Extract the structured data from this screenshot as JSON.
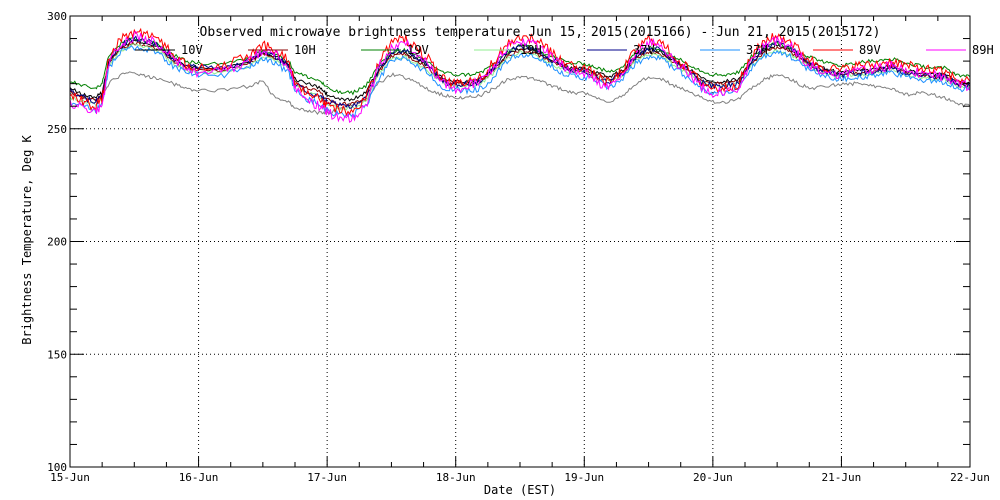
{
  "chart_data": {
    "type": "line",
    "title": "Observed microwave brightness temperature Jun 15, 2015(2015166) - Jun 21, 2015(2015172)",
    "xlabel": "Date (EST)",
    "ylabel": "Brightness Temperature, Deg K",
    "xlim": [
      0,
      7
    ],
    "ylim": [
      100,
      300
    ],
    "grid": true,
    "legend_position": "top",
    "x_ticks": [
      {
        "value": 0,
        "label": "15-Jun"
      },
      {
        "value": 1,
        "label": "16-Jun"
      },
      {
        "value": 2,
        "label": "17-Jun"
      },
      {
        "value": 3,
        "label": "18-Jun"
      },
      {
        "value": 4,
        "label": "19-Jun"
      },
      {
        "value": 5,
        "label": "20-Jun"
      },
      {
        "value": 6,
        "label": "21-Jun"
      },
      {
        "value": 7,
        "label": "22-Jun"
      }
    ],
    "y_ticks": [
      {
        "value": 100,
        "label": "100"
      },
      {
        "value": 150,
        "label": "150"
      },
      {
        "value": 200,
        "label": "200"
      },
      {
        "value": 250,
        "label": "250"
      },
      {
        "value": 300,
        "label": "300"
      }
    ],
    "x": [
      0,
      0.1,
      0.2,
      0.25,
      0.3,
      0.4,
      0.5,
      0.6,
      0.7,
      0.8,
      0.9,
      1.0,
      1.2,
      1.4,
      1.5,
      1.6,
      1.7,
      1.75,
      1.85,
      1.95,
      2.0,
      2.1,
      2.2,
      2.3,
      2.4,
      2.5,
      2.6,
      2.7,
      2.8,
      2.9,
      3.0,
      3.1,
      3.2,
      3.3,
      3.4,
      3.5,
      3.6,
      3.7,
      3.8,
      3.9,
      4.0,
      4.1,
      4.2,
      4.3,
      4.4,
      4.5,
      4.6,
      4.7,
      4.8,
      4.9,
      5.0,
      5.1,
      5.2,
      5.3,
      5.4,
      5.5,
      5.6,
      5.7,
      5.8,
      5.9,
      6.0,
      6.1,
      6.2,
      6.3,
      6.4,
      6.5,
      6.6,
      6.7,
      6.8,
      6.9,
      7.0
    ],
    "series": [
      {
        "name": "10V",
        "color": "#000000",
        "values": [
          268,
          265,
          264,
          266,
          280,
          286,
          289,
          288,
          286,
          281,
          278,
          277,
          277,
          280,
          284,
          282,
          279,
          272,
          270,
          268,
          265,
          263,
          263,
          266,
          276,
          283,
          284,
          281,
          277,
          272,
          271,
          271,
          272,
          277,
          283,
          286,
          285,
          282,
          279,
          277,
          277,
          275,
          273,
          276,
          282,
          285,
          284,
          280,
          277,
          273,
          271,
          271,
          272,
          280,
          285,
          287,
          285,
          281,
          278,
          276,
          275,
          276,
          276,
          277,
          278,
          276,
          275,
          274,
          274,
          271,
          270
        ]
      },
      {
        "name": "10H",
        "color": "#8b0000",
        "values": [
          266,
          264,
          263,
          265,
          279,
          286,
          288,
          287,
          285,
          280,
          277,
          276,
          276,
          279,
          283,
          281,
          278,
          271,
          268,
          266,
          263,
          261,
          261,
          264,
          275,
          282,
          283,
          280,
          276,
          271,
          270,
          270,
          271,
          276,
          282,
          285,
          284,
          281,
          278,
          276,
          276,
          274,
          272,
          275,
          281,
          284,
          283,
          279,
          276,
          272,
          270,
          270,
          271,
          279,
          284,
          286,
          284,
          280,
          277,
          275,
          274,
          275,
          275,
          276,
          277,
          275,
          274,
          273,
          273,
          270,
          269
        ]
      },
      {
        "name": "19V",
        "color": "#008000",
        "values": [
          271,
          269,
          268,
          270,
          282,
          288,
          290,
          289,
          287,
          283,
          280,
          279,
          279,
          281,
          285,
          283,
          280,
          275,
          273,
          271,
          268,
          266,
          266,
          269,
          278,
          284,
          285,
          282,
          279,
          275,
          274,
          274,
          275,
          279,
          284,
          287,
          286,
          283,
          281,
          279,
          279,
          277,
          275,
          278,
          284,
          286,
          285,
          282,
          279,
          276,
          274,
          274,
          275,
          282,
          286,
          288,
          286,
          283,
          281,
          279,
          278,
          279,
          280,
          280,
          281,
          279,
          278,
          277,
          277,
          274,
          273
        ]
      },
      {
        "name": "19H",
        "color": "#90ee90",
        "values": [
          264,
          262,
          261,
          263,
          278,
          285,
          287,
          286,
          284,
          279,
          276,
          275,
          275,
          278,
          282,
          280,
          277,
          270,
          266,
          264,
          261,
          259,
          259,
          262,
          274,
          281,
          282,
          279,
          275,
          270,
          269,
          269,
          270,
          275,
          281,
          284,
          283,
          280,
          277,
          275,
          275,
          273,
          271,
          274,
          280,
          283,
          282,
          278,
          275,
          271,
          269,
          269,
          270,
          278,
          283,
          285,
          283,
          279,
          276,
          274,
          273,
          274,
          274,
          275,
          276,
          274,
          273,
          272,
          272,
          269,
          268
        ]
      },
      {
        "name": "37V",
        "color": "#00008b",
        "values": [
          267,
          264,
          262,
          264,
          279,
          287,
          290,
          289,
          286,
          281,
          278,
          277,
          277,
          280,
          284,
          282,
          278,
          270,
          266,
          264,
          262,
          260,
          260,
          264,
          276,
          284,
          285,
          282,
          277,
          271,
          270,
          270,
          271,
          277,
          284,
          287,
          286,
          282,
          279,
          276,
          276,
          273,
          271,
          275,
          282,
          286,
          285,
          280,
          276,
          271,
          269,
          269,
          270,
          280,
          286,
          288,
          286,
          281,
          277,
          275,
          274,
          275,
          275,
          276,
          277,
          275,
          274,
          273,
          273,
          270,
          269
        ]
      },
      {
        "name": "37H",
        "color": "#1e90ff",
        "values": [
          262,
          260,
          258,
          261,
          277,
          284,
          286,
          285,
          283,
          278,
          275,
          274,
          274,
          277,
          281,
          279,
          275,
          267,
          263,
          261,
          258,
          256,
          256,
          260,
          272,
          280,
          281,
          278,
          274,
          268,
          267,
          267,
          268,
          273,
          280,
          283,
          282,
          279,
          276,
          273,
          273,
          271,
          268,
          272,
          279,
          282,
          281,
          277,
          273,
          268,
          266,
          266,
          268,
          277,
          282,
          284,
          282,
          278,
          275,
          273,
          272,
          273,
          273,
          274,
          275,
          273,
          272,
          271,
          271,
          268,
          267
        ]
      },
      {
        "name": "89V",
        "color": "#ff0000",
        "values": [
          265,
          262,
          260,
          263,
          281,
          290,
          293,
          292,
          289,
          283,
          279,
          277,
          278,
          282,
          287,
          285,
          280,
          270,
          265,
          263,
          260,
          258,
          258,
          263,
          279,
          288,
          290,
          286,
          280,
          272,
          270,
          271,
          273,
          280,
          288,
          291,
          290,
          286,
          281,
          278,
          277,
          273,
          270,
          276,
          285,
          290,
          288,
          282,
          277,
          271,
          268,
          268,
          270,
          282,
          289,
          291,
          289,
          283,
          279,
          277,
          276,
          278,
          278,
          279,
          280,
          278,
          277,
          276,
          275,
          272,
          271
        ]
      },
      {
        "name": "89H",
        "color": "#ff00ff",
        "values": [
          262,
          259,
          257,
          260,
          279,
          288,
          291,
          290,
          287,
          281,
          277,
          275,
          276,
          280,
          285,
          283,
          278,
          268,
          262,
          260,
          257,
          255,
          255,
          260,
          277,
          286,
          288,
          284,
          278,
          270,
          268,
          269,
          271,
          278,
          286,
          289,
          288,
          284,
          279,
          276,
          275,
          271,
          268,
          274,
          283,
          288,
          286,
          280,
          275,
          269,
          266,
          266,
          268,
          280,
          287,
          289,
          287,
          281,
          277,
          275,
          274,
          276,
          276,
          277,
          278,
          276,
          275,
          274,
          273,
          270,
          269
        ]
      },
      {
        "name": "",
        "color": "#808080",
        "values": [
          266,
          264,
          263,
          264,
          270,
          274,
          275,
          273,
          272,
          270,
          268,
          267,
          267,
          269,
          271,
          263,
          262,
          259,
          258,
          257,
          257,
          259,
          261,
          263,
          270,
          274,
          273,
          270,
          267,
          265,
          264,
          264,
          265,
          268,
          272,
          273,
          272,
          270,
          268,
          266,
          266,
          264,
          262,
          265,
          270,
          273,
          272,
          269,
          267,
          264,
          262,
          262,
          263,
          268,
          272,
          274,
          272,
          269,
          268,
          269,
          270,
          270,
          269,
          269,
          268,
          265,
          266,
          265,
          264,
          261,
          260
        ]
      }
    ]
  }
}
